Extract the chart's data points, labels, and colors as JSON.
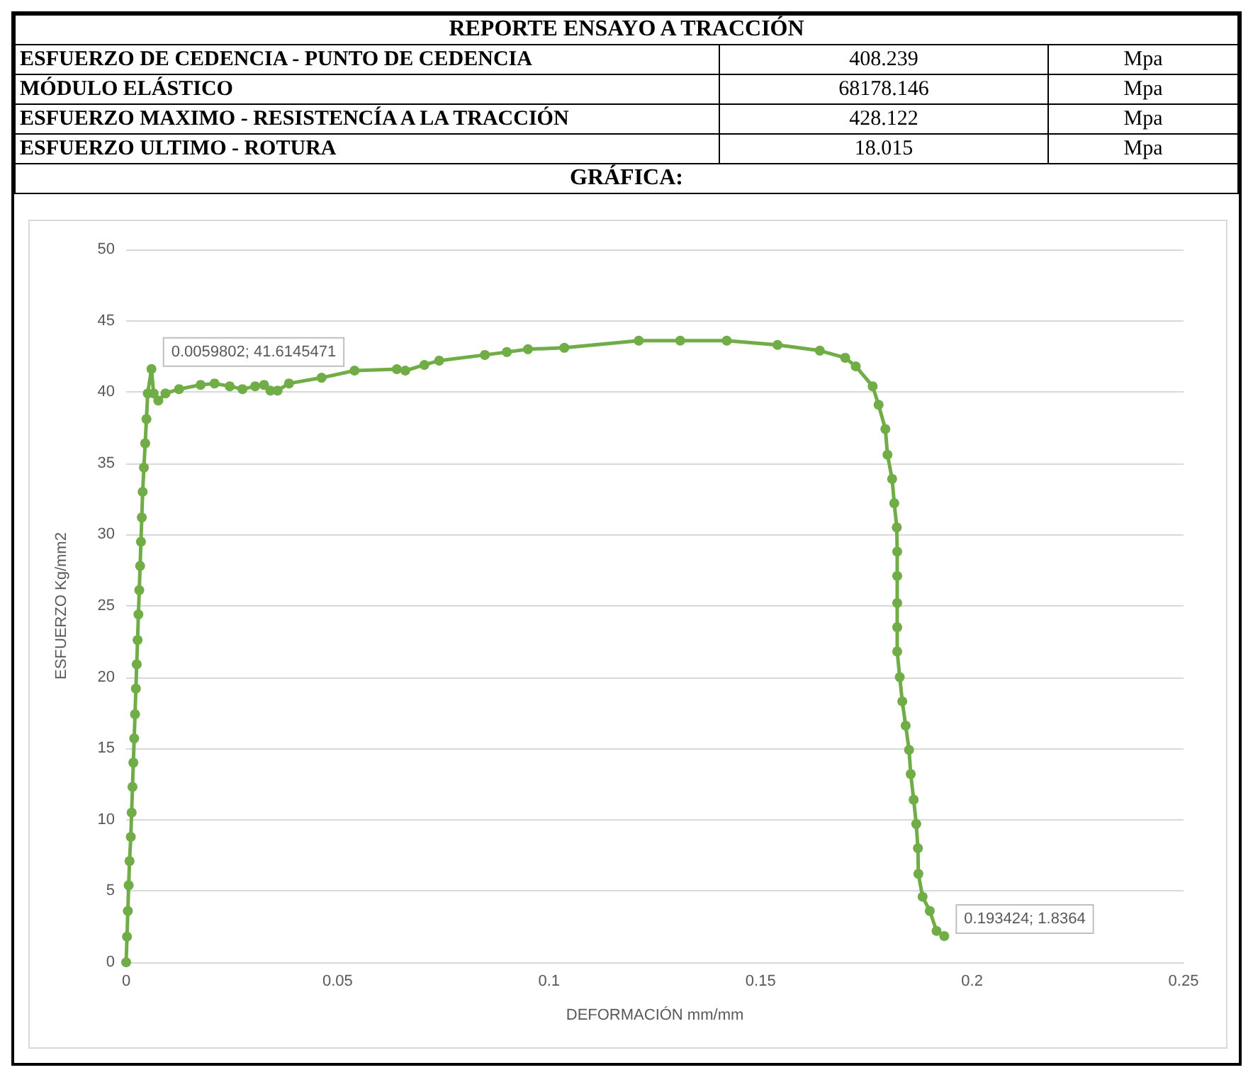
{
  "chart_data": {
    "type": "line",
    "title": "REPORTE ENSAYO A TRACCIÓN",
    "subtitle": "GRÁFICA:",
    "annotations": [
      "ESFUERZO DE CEDENCIA - PUNTO DE CEDENCIA",
      "408.239",
      "Mpa",
      "MÓDULO ELÁSTICO",
      "68178.146",
      "Mpa",
      "ESFUERZO MAXIMO - RESISTENCÍA A LA TRACCIÓN",
      "428.122",
      "Mpa",
      "ESFUERZO ULTIMO - ROTURA",
      "18.015",
      "Mpa",
      {
        "text": "0.0059802; 41.6145471",
        "x": 0.0059802,
        "y": 41.6145471
      },
      {
        "text": "0.193424; 1.8364",
        "x": 0.193424,
        "y": 1.8364
      }
    ],
    "xlabel": "DEFORMACIÓN mm/mm",
    "ylabel": "ESFUERZO Kg/mm2",
    "xlim": [
      0,
      0.25
    ],
    "xticks": [
      0,
      0.05,
      0.1,
      0.15,
      0.2,
      0.25
    ],
    "ylim": [
      0,
      50
    ],
    "yticks": [
      0,
      5,
      10,
      15,
      20,
      25,
      30,
      35,
      40,
      45,
      50
    ],
    "grid": "y",
    "marker": "circle",
    "line_style": "solid",
    "series": [
      {
        "color": "#70ad47",
        "x": [
          0,
          0.0002,
          0.0004,
          0.0006,
          0.0008,
          0.0011,
          0.0013,
          0.0015,
          0.0017,
          0.0019,
          0.0021,
          0.0023,
          0.0025,
          0.0027,
          0.0029,
          0.0031,
          0.0033,
          0.0035,
          0.0037,
          0.0039,
          0.0042,
          0.0045,
          0.0048,
          0.0051,
          0.0059802,
          0.0065,
          0.0076,
          0.0093,
          0.0125,
          0.0176,
          0.0209,
          0.0245,
          0.0275,
          0.0305,
          0.0326,
          0.0341,
          0.0358,
          0.0385,
          0.0462,
          0.054,
          0.064,
          0.066,
          0.0705,
          0.074,
          0.0848,
          0.09,
          0.095,
          0.1036,
          0.1212,
          0.131,
          0.142,
          0.154,
          0.164,
          0.17,
          0.1725,
          0.1765,
          0.1779,
          0.1795,
          0.18,
          0.1811,
          0.1816,
          0.1822,
          0.1823,
          0.1823,
          0.1823,
          0.1823,
          0.1823,
          0.1829,
          0.1835,
          0.1843,
          0.1851,
          0.1855,
          0.1862,
          0.1868,
          0.1872,
          0.1873,
          0.1883,
          0.19,
          0.1916,
          0.193424
        ],
        "values": [
          0,
          1.8,
          3.6,
          5.4,
          7.1,
          8.8,
          10.5,
          12.3,
          14.0,
          15.7,
          17.4,
          19.2,
          20.9,
          22.6,
          24.4,
          26.1,
          27.8,
          29.5,
          31.2,
          33.0,
          34.7,
          36.4,
          38.1,
          39.9,
          41.6145471,
          39.9,
          39.4,
          39.9,
          40.2,
          40.5,
          40.6,
          40.4,
          40.2,
          40.4,
          40.5,
          40.1,
          40.1,
          40.6,
          41.0,
          41.5,
          41.6,
          41.5,
          41.9,
          42.2,
          42.6,
          42.8,
          43.0,
          43.1,
          43.6,
          43.6,
          43.6,
          43.3,
          42.9,
          42.4,
          41.8,
          40.4,
          39.1,
          37.4,
          35.6,
          33.9,
          32.2,
          30.5,
          28.8,
          27.1,
          25.2,
          23.5,
          21.8,
          20.0,
          18.3,
          16.6,
          14.9,
          13.2,
          11.4,
          9.7,
          8.0,
          6.2,
          4.6,
          3.6,
          2.2,
          1.8364
        ]
      }
    ]
  }
}
